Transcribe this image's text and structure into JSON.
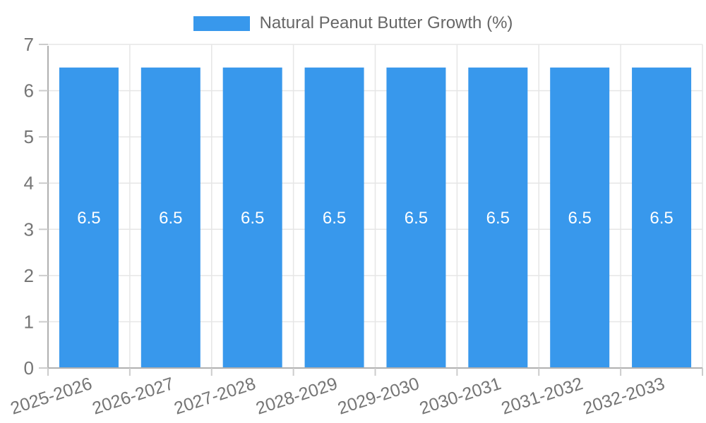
{
  "chart_data": {
    "type": "bar",
    "title": "",
    "legend": {
      "label": "Natural Peanut Butter Growth (%)",
      "position": "top"
    },
    "categories": [
      "2025-2026",
      "2026-2027",
      "2027-2028",
      "2028-2029",
      "2029-2030",
      "2030-2031",
      "2031-2032",
      "2032-2033"
    ],
    "series": [
      {
        "name": "Natural Peanut Butter Growth (%)",
        "values": [
          6.5,
          6.5,
          6.5,
          6.5,
          6.5,
          6.5,
          6.5,
          6.5
        ]
      }
    ],
    "bar_value_labels": [
      "6.5",
      "6.5",
      "6.5",
      "6.5",
      "6.5",
      "6.5",
      "6.5",
      "6.5"
    ],
    "xlabel": "",
    "ylabel": "",
    "ylim": [
      0,
      7
    ],
    "yticks": [
      0,
      1,
      2,
      3,
      4,
      5,
      6,
      7
    ],
    "grid": true,
    "colors": {
      "bar": "#3898EC",
      "bar_value_label": "#ffffff",
      "grid_line": "#e6e6e6",
      "axis_line": "#b0b0b0",
      "tick_mark": "#cccccc",
      "tick_text": "#757575",
      "legend_text": "#666666"
    }
  }
}
